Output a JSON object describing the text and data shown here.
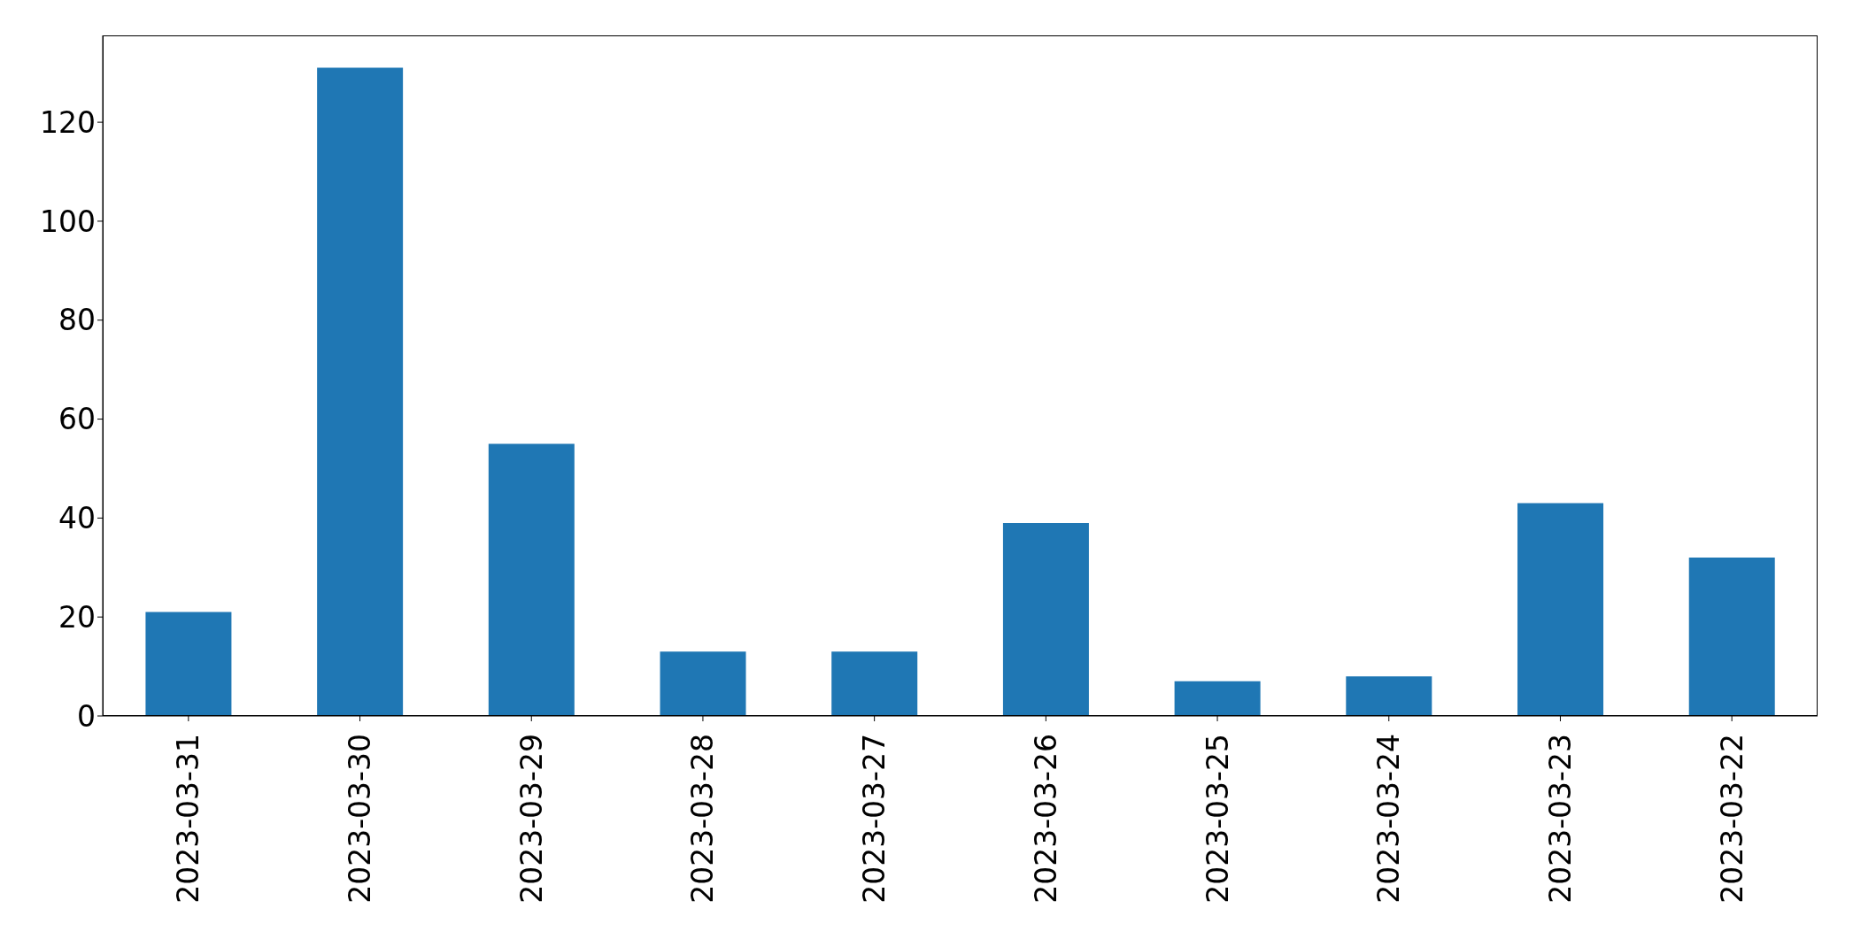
{
  "chart_data": {
    "type": "bar",
    "categories": [
      "2023-03-31",
      "2023-03-30",
      "2023-03-29",
      "2023-03-28",
      "2023-03-27",
      "2023-03-26",
      "2023-03-25",
      "2023-03-24",
      "2023-03-23",
      "2023-03-22"
    ],
    "values": [
      21,
      131,
      55,
      13,
      13,
      39,
      7,
      8,
      43,
      32
    ],
    "color": "#1f77b4",
    "ylim": [
      0,
      137.55
    ],
    "yticks": [
      0,
      20,
      40,
      60,
      80,
      100,
      120
    ],
    "grid": false
  }
}
